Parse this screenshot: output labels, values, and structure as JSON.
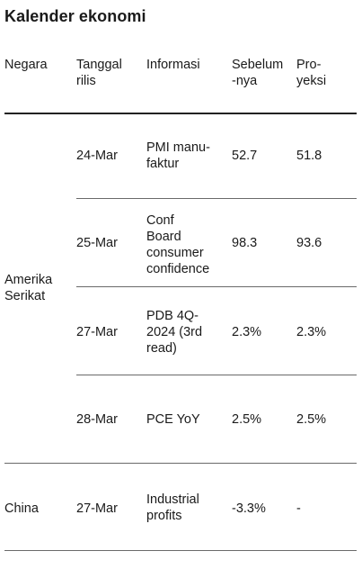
{
  "title": "Kalender ekonomi",
  "headers": {
    "negara": "Negara",
    "tanggal": "Tanggal\nrilis",
    "informasi": "Informasi",
    "sebelumnya": "Sebelum\n-nya",
    "proyeksi": "Pro-\nyeksi"
  },
  "groups": [
    {
      "country": "Amerika\nSerikat",
      "rows": [
        {
          "date": "24-Mar",
          "info": "PMI manu-\nfaktur",
          "prev": "52.7",
          "proj": "51.8"
        },
        {
          "date": "25-Mar",
          "info": "Conf\nBoard\nconsumer\nconfidence",
          "prev": "98.3",
          "proj": "93.6"
        },
        {
          "date": "27-Mar",
          "info": "PDB 4Q-\n2024 (3rd\nread)",
          "prev": "2.3%",
          "proj": "2.3%"
        },
        {
          "date": "28-Mar",
          "info": "PCE YoY",
          "prev": "2.5%",
          "proj": "2.5%"
        }
      ]
    },
    {
      "country": "China",
      "rows": [
        {
          "date": "27-Mar",
          "info": "Industrial\nprofits",
          "prev": "-3.3%",
          "proj": "-"
        }
      ]
    }
  ]
}
